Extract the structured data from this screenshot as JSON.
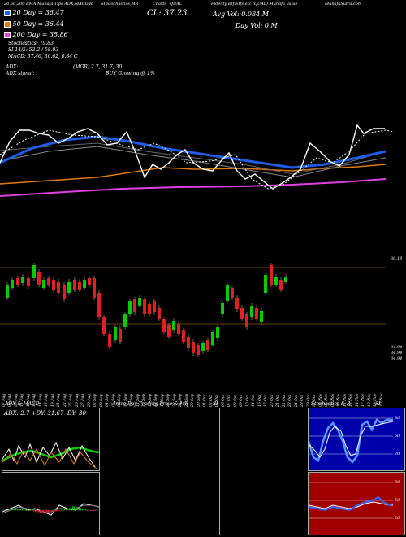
{
  "header": {
    "studies": "20,50,200 EMA Munafa Tips ADX,MACD,R",
    "stoch_title": "SI,Stochastics,MR",
    "chart_title": "Charts",
    "ticker": "QUAL",
    "desc": "Fidelity Etf Etfs etc (QUAL) Munafa Value",
    "website": "MunafaSutra.com"
  },
  "ema": {
    "e20": "20  Day = 36.47",
    "e50": "50  Day = 36.44",
    "e200": "200  Day = 35.86"
  },
  "quote": {
    "cl": "CL: 37.23",
    "avg_vol": "Avg Vol: 0.084  M",
    "day_vol": "Day Vol: 0  M"
  },
  "stats": {
    "stochastics": "Stochastics: 79.83",
    "si": "SI  14/5: 52.2  / 58.03",
    "macd": "MACD: 37.46, 36.62, 0.84  C"
  },
  "adx_line": {
    "label": "ADX:",
    "mid": "(MGR) 2.7, 31.7, 30"
  },
  "adx_signal": {
    "label": "ADX  signal:",
    "mid": "BUY Growing @ 1%"
  },
  "price_labels": {
    "top": "38.18",
    "bottom1": "34.94",
    "bottom2": "34.94",
    "bottom3": "34.94"
  },
  "dates": [
    "07 Aug",
    "08 Aug",
    "09 Aug",
    "11 Aug",
    "12 Aug",
    "13 Aug",
    "14 Aug",
    "18 Aug",
    "19 Aug",
    "21 Aug",
    "22 Aug",
    "25 Aug",
    "26 Aug",
    "27 Aug",
    "29 Aug",
    "02 Sep",
    "03 Sep",
    "04 Sep",
    "05 Sep",
    "09 Sep",
    "10 Sep",
    "11 Sep",
    "12 Sep",
    "15 Sep",
    "16 Sep",
    "18 Sep",
    "19 Sep",
    "22 Sep",
    "23 Sep",
    "24 Sep",
    "26 Sep",
    "29 Sep",
    "30 Sep",
    "01 Oct",
    "02 Oct",
    "03 Oct",
    "06 Oct",
    "07 Oct",
    "08 Oct",
    "09 Oct",
    "10 Oct",
    "14 Oct",
    "16 Oct",
    "17 Oct",
    "20 Oct",
    "21 Oct",
    "22 Oct",
    "23 Oct",
    "24 Oct",
    "28 Oct",
    "29 Oct",
    "31 Oct",
    "03 Nov",
    "05 Nov",
    "06 Nov",
    "10 Nov",
    "12 Nov",
    "13 Nov",
    "14 Nov",
    "17 Nov",
    "18 Nov",
    "19 Nov",
    "20 Nov"
  ],
  "bottom": {
    "adx_macd_title": "ADX  & MACD",
    "adx_readout": "ADX: 2.7  +DY: 31.67  -DY: 30",
    "intra_title": "Intra  Day Trading Price  & MR",
    "si_label": "SI",
    "stoch_title": "Stochastics  & R",
    "stoch_si": "SI",
    "stoch_ticks": [
      "80",
      "50",
      "20"
    ],
    "si_ticks": [
      "80",
      "50",
      "20"
    ]
  },
  "colors": {
    "ema20": "#1f5ce8",
    "ema50": "#e07a10",
    "ema200": "#e040e0",
    "up": "#00cc00",
    "down": "#e02020",
    "stoch_bg": "#0000aa",
    "si_bg": "#a00000"
  }
}
